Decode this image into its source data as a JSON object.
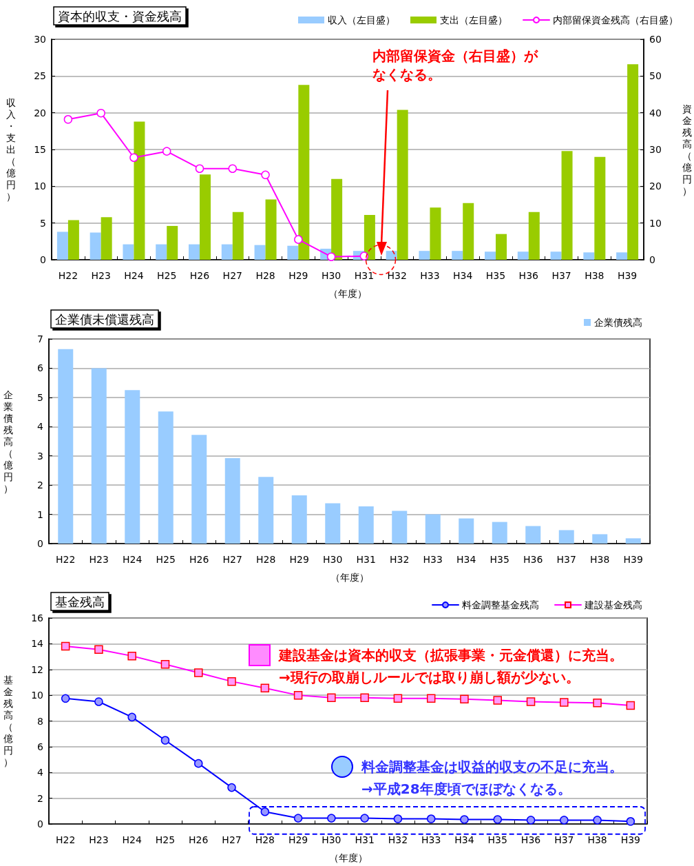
{
  "chart_data": [
    {
      "type": "bar",
      "title": "資本的収支・資金残高",
      "categories": [
        "H22",
        "H23",
        "H24",
        "H25",
        "H26",
        "H27",
        "H28",
        "H29",
        "H30",
        "H31",
        "H32",
        "H33",
        "H34",
        "H35",
        "H36",
        "H37",
        "H38",
        "H39"
      ],
      "series": [
        {
          "name": "収入（左目盛）",
          "color": "#99ccff",
          "values": [
            3.8,
            3.7,
            2.1,
            2.1,
            2.1,
            2.1,
            2.0,
            1.9,
            1.5,
            1.2,
            1.2,
            1.2,
            1.2,
            1.1,
            1.1,
            1.1,
            1.0,
            1.0
          ]
        },
        {
          "name": "支出（左目盛）",
          "color": "#99cc00",
          "values": [
            5.4,
            5.8,
            18.8,
            4.6,
            11.6,
            6.5,
            8.2,
            23.8,
            11.0,
            6.1,
            20.4,
            7.1,
            7.7,
            3.5,
            6.5,
            14.8,
            14.0,
            26.6
          ]
        },
        {
          "name": "内部留保資金残高（右目盛）",
          "type": "line",
          "axis": "y2",
          "marker": "circle",
          "color": "#ff00ff",
          "values": [
            38.2,
            39.9,
            27.8,
            29.5,
            24.8,
            24.8,
            23.1,
            5.5,
            0.8,
            1.0,
            null,
            null,
            null,
            null,
            null,
            null,
            null,
            null
          ]
        }
      ],
      "xlabel": "（年度）",
      "ylabel": "収入・支出（億円）",
      "y2label": "資金残高（億円）",
      "ylim": [
        0,
        30
      ],
      "yticks": [
        0,
        5,
        10,
        15,
        20,
        25,
        30
      ],
      "y2lim": [
        0,
        60
      ],
      "y2ticks": [
        0,
        10,
        20,
        30,
        40,
        50,
        60
      ],
      "grid": "y",
      "legend": "top",
      "annotations": [
        "内部留保資金（右目盛）がなくなる。"
      ]
    },
    {
      "type": "bar",
      "title": "企業債未償還残高",
      "categories": [
        "H22",
        "H23",
        "H24",
        "H25",
        "H26",
        "H27",
        "H28",
        "H29",
        "H30",
        "H31",
        "H32",
        "H33",
        "H34",
        "H35",
        "H36",
        "H37",
        "H38",
        "H39"
      ],
      "series": [
        {
          "name": "企業債残高",
          "color": "#99ccff",
          "values": [
            6.65,
            6.0,
            5.25,
            4.52,
            3.72,
            2.92,
            2.28,
            1.65,
            1.38,
            1.27,
            1.12,
            1.0,
            0.86,
            0.74,
            0.6,
            0.46,
            0.32,
            0.18
          ]
        }
      ],
      "xlabel": "（年度）",
      "ylabel": "企業債残高（億円）",
      "ylim": [
        0,
        7
      ],
      "yticks": [
        0,
        1,
        2,
        3,
        4,
        5,
        6,
        7
      ],
      "grid": "y",
      "legend": "top right"
    },
    {
      "type": "line",
      "title": "基金残高",
      "categories": [
        "H22",
        "H23",
        "H24",
        "H25",
        "H26",
        "H27",
        "H28",
        "H29",
        "H30",
        "H31",
        "H32",
        "H33",
        "H34",
        "H35",
        "H36",
        "H37",
        "H38",
        "H39"
      ],
      "series": [
        {
          "name": "料金調整基金残高",
          "marker": "circle",
          "color": "#0000ff",
          "values": [
            9.75,
            9.5,
            8.3,
            6.5,
            4.7,
            2.83,
            0.95,
            0.45,
            0.45,
            0.45,
            0.4,
            0.4,
            0.35,
            0.35,
            0.3,
            0.3,
            0.3,
            0.2
          ]
        },
        {
          "name": "建設基金残高",
          "marker": "square",
          "color": "#ff00ff",
          "values": [
            13.8,
            13.55,
            13.05,
            12.4,
            11.75,
            11.07,
            10.55,
            10.0,
            9.8,
            9.8,
            9.75,
            9.75,
            9.7,
            9.6,
            9.5,
            9.45,
            9.4,
            9.2
          ]
        }
      ],
      "xlabel": "（年度）",
      "ylabel": "基金残高（億円）",
      "ylim": [
        0,
        16
      ],
      "yticks": [
        0,
        2,
        4,
        6,
        8,
        10,
        12,
        14,
        16
      ],
      "grid": "y",
      "legend": "top right",
      "annotations": [
        "建設基金は資本的収支（拡張事業・元金償還）に充当。\n→現行の取崩しルールでは取り崩し額が少ない。",
        "料金調整基金は収益的収支の不足に充当。\n→平成28年度頃でほぼなくなる。"
      ]
    }
  ]
}
